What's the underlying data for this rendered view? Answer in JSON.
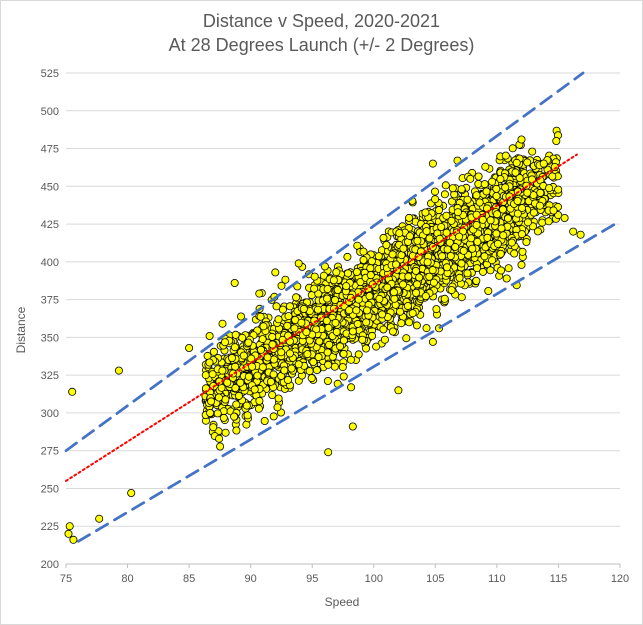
{
  "chart_data": {
    "type": "scatter",
    "title": "Distance v Speed, 2020-2021",
    "subtitle": "At 28 Degrees Launch (+/- 2 Degrees)",
    "xlabel": "Speed",
    "ylabel": "Distance",
    "xlim": [
      75,
      120
    ],
    "ylim": [
      200,
      525
    ],
    "x_ticks": [
      75,
      80,
      85,
      90,
      95,
      100,
      105,
      110,
      115,
      120
    ],
    "y_ticks": [
      200,
      225,
      250,
      275,
      300,
      325,
      350,
      375,
      400,
      425,
      450,
      475,
      500,
      525
    ],
    "grid": "horizontal",
    "legend": "none",
    "point_color": "#FFFF00",
    "point_edge_color": "#000000",
    "series": [
      {
        "kind": "points",
        "approx_count": 3500,
        "trend": {
          "slope": 5.0,
          "intercept": -120,
          "spread_sd": 15,
          "x_range": [
            75,
            117
          ]
        },
        "outliers": [
          {
            "x": 75.5,
            "y": 314
          },
          {
            "x": 79.3,
            "y": 328
          },
          {
            "x": 75.3,
            "y": 225
          },
          {
            "x": 75.6,
            "y": 216
          },
          {
            "x": 75.2,
            "y": 220
          },
          {
            "x": 88.7,
            "y": 386
          },
          {
            "x": 90.7,
            "y": 379
          },
          {
            "x": 92.0,
            "y": 393
          },
          {
            "x": 93.9,
            "y": 399
          },
          {
            "x": 96.3,
            "y": 274
          },
          {
            "x": 98.3,
            "y": 291
          },
          {
            "x": 102.0,
            "y": 315
          },
          {
            "x": 104.8,
            "y": 465
          },
          {
            "x": 106.8,
            "y": 467
          },
          {
            "x": 112.0,
            "y": 481
          },
          {
            "x": 113.8,
            "y": 465
          },
          {
            "x": 114.2,
            "y": 434
          },
          {
            "x": 114.6,
            "y": 434
          },
          {
            "x": 115.5,
            "y": 429
          },
          {
            "x": 116.2,
            "y": 420
          },
          {
            "x": 116.8,
            "y": 418
          },
          {
            "x": 112.0,
            "y": 398
          },
          {
            "x": 110.8,
            "y": 389
          },
          {
            "x": 104.8,
            "y": 347
          },
          {
            "x": 105.3,
            "y": 356
          },
          {
            "x": 80.3,
            "y": 247
          },
          {
            "x": 77.7,
            "y": 230
          },
          {
            "x": 87.7,
            "y": 328
          },
          {
            "x": 85.0,
            "y": 343
          }
        ]
      },
      {
        "kind": "trendline",
        "style": "dotted",
        "color": "#FF0000",
        "points": [
          {
            "x": 75,
            "y": 255
          },
          {
            "x": 116.5,
            "y": 471
          }
        ]
      },
      {
        "kind": "upper-bound",
        "style": "dashed",
        "color": "#4472C4",
        "points": [
          {
            "x": 75,
            "y": 275
          },
          {
            "x": 117,
            "y": 525
          }
        ]
      },
      {
        "kind": "lower-bound",
        "style": "dashed",
        "color": "#4472C4",
        "points": [
          {
            "x": 76,
            "y": 215
          },
          {
            "x": 120,
            "y": 427
          }
        ]
      }
    ]
  }
}
